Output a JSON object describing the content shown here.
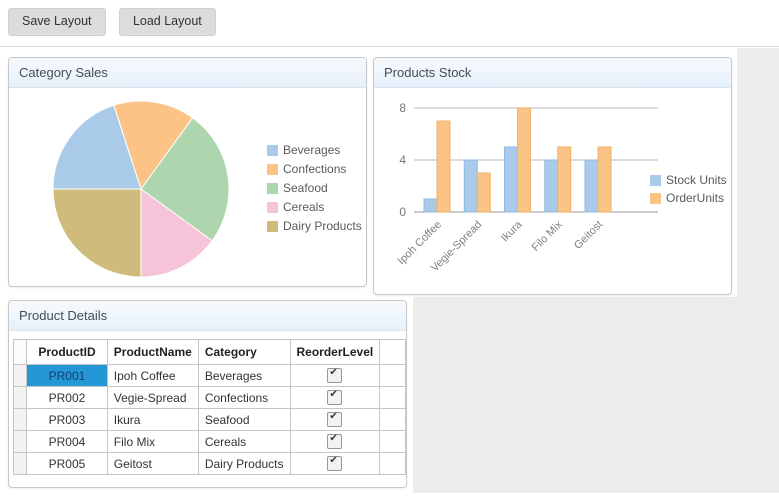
{
  "toolbar": {
    "save_label": "Save Layout",
    "load_label": "Load Layout"
  },
  "panels": {
    "category_sales": {
      "title": "Category Sales"
    },
    "products_stock": {
      "title": "Products Stock"
    },
    "product_details": {
      "title": "Product Details"
    }
  },
  "colors": {
    "series_blue": "#a9cbe9",
    "series_orange": "#fbc386",
    "series_green": "#add6ae",
    "series_pink": "#f6c4d8",
    "series_khaki": "#cfbc7c",
    "selected_cell_bg": "#2596d6",
    "panel_header_bg": "#e7f0fa",
    "content_bg": "#ececec",
    "grid_line": "#b8b8b8",
    "axis_line": "#999999"
  },
  "chart_data": [
    {
      "id": "category-sales-pie",
      "type": "pie",
      "title": "Category Sales",
      "labels": [
        "Beverages",
        "Confections",
        "Seafood",
        "Cereals",
        "Dairy Products"
      ],
      "values": [
        20,
        15,
        25,
        15,
        25
      ],
      "colors": [
        "#a9cbe9",
        "#fbc386",
        "#add6ae",
        "#f6c4d8",
        "#cfbc7c"
      ],
      "start_angle_deg_from_top": 270,
      "direction": "clockwise",
      "legend_position": "right"
    },
    {
      "id": "products-stock-bar",
      "type": "bar",
      "title": "Products Stock",
      "categories": [
        "Ipoh Coffee",
        "Vegie-Spread",
        "Ikura",
        "Filo Mix",
        "Geitost"
      ],
      "series": [
        {
          "name": "Stock Units",
          "color": "#a9cbe9",
          "edge": "#8fb9e0",
          "values": [
            1,
            4,
            5,
            4,
            4
          ]
        },
        {
          "name": "OrderUnits",
          "color": "#fbc386",
          "edge": "#eeb06a",
          "values": [
            7,
            3,
            8,
            5,
            5
          ]
        }
      ],
      "ylim": [
        0,
        8
      ],
      "yticks": [
        0,
        4,
        8
      ],
      "grid": true,
      "legend_position": "right",
      "x_label_rotation_deg": -45
    }
  ],
  "product_table": {
    "columns": [
      "ProductID",
      "ProductName",
      "Category",
      "ReorderLevel"
    ],
    "rows": [
      {
        "ProductID": "PR001",
        "ProductName": "Ipoh Coffee",
        "Category": "Beverages",
        "ReorderLevel": true
      },
      {
        "ProductID": "PR002",
        "ProductName": "Vegie-Spread",
        "Category": "Confections",
        "ReorderLevel": true
      },
      {
        "ProductID": "PR003",
        "ProductName": "Ikura",
        "Category": "Seafood",
        "ReorderLevel": true
      },
      {
        "ProductID": "PR004",
        "ProductName": "Filo Mix",
        "Category": "Cereals",
        "ReorderLevel": true
      },
      {
        "ProductID": "PR005",
        "ProductName": "Geitost",
        "Category": "Dairy Products",
        "ReorderLevel": true
      }
    ],
    "selected_cell": {
      "row_index": 0,
      "column": "ProductID"
    }
  }
}
